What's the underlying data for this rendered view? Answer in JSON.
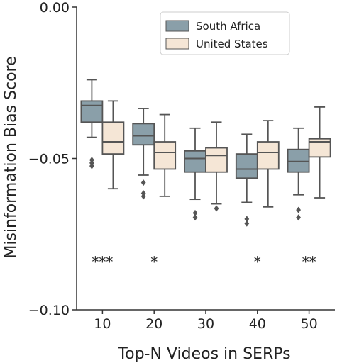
{
  "chart_data": {
    "type": "box",
    "xlabel": "Top-N Videos in SERPs",
    "ylabel": "Misinformation Bias Score",
    "categories": [
      "10",
      "20",
      "30",
      "40",
      "50"
    ],
    "ylim": [
      -0.1,
      0.0
    ],
    "yticks": [
      0.0,
      -0.05,
      -0.1
    ],
    "ytick_labels": [
      "0.00",
      "−0.05",
      "−0.10"
    ],
    "legend_position": "top-right",
    "series": [
      {
        "name": "South Africa",
        "color": "#8a9fa9",
        "boxes": [
          {
            "whislo": -0.043,
            "q1": -0.038,
            "med": -0.0325,
            "q3": -0.031,
            "whishi": -0.024,
            "fliers": [
              -0.0505,
              -0.0515,
              -0.0525
            ]
          },
          {
            "whislo": -0.0555,
            "q1": -0.0455,
            "med": -0.0425,
            "q3": -0.0385,
            "whishi": -0.0335,
            "fliers": [
              -0.058,
              -0.0615,
              -0.0625
            ]
          },
          {
            "whislo": -0.0635,
            "q1": -0.0545,
            "med": -0.05,
            "q3": -0.0475,
            "whishi": -0.04,
            "fliers": [
              -0.068,
              -0.0695
            ]
          },
          {
            "whislo": -0.0645,
            "q1": -0.0565,
            "med": -0.0535,
            "q3": -0.0485,
            "whishi": -0.042,
            "fliers": [
              -0.07,
              -0.0715
            ]
          },
          {
            "whislo": -0.062,
            "q1": -0.0545,
            "med": -0.051,
            "q3": -0.047,
            "whishi": -0.04,
            "fliers": [
              -0.067,
              -0.0695
            ]
          }
        ]
      },
      {
        "name": "United States",
        "color": "#f5e6d6",
        "boxes": [
          {
            "whislo": -0.06,
            "q1": -0.0485,
            "med": -0.0445,
            "q3": -0.038,
            "whishi": -0.031,
            "fliers": []
          },
          {
            "whislo": -0.0625,
            "q1": -0.0535,
            "med": -0.048,
            "q3": -0.0445,
            "whishi": -0.0355,
            "fliers": []
          },
          {
            "whislo": -0.065,
            "q1": -0.0545,
            "med": -0.049,
            "q3": -0.0465,
            "whishi": -0.038,
            "fliers": [
              -0.0665
            ]
          },
          {
            "whislo": -0.066,
            "q1": -0.0535,
            "med": -0.048,
            "q3": -0.0445,
            "whishi": -0.0375,
            "fliers": []
          },
          {
            "whislo": -0.063,
            "q1": -0.0495,
            "med": -0.0445,
            "q3": -0.0435,
            "whishi": -0.033,
            "fliers": []
          }
        ]
      }
    ],
    "significance": [
      "***",
      "*",
      "",
      "*",
      "**"
    ],
    "significance_y": -0.0835
  }
}
